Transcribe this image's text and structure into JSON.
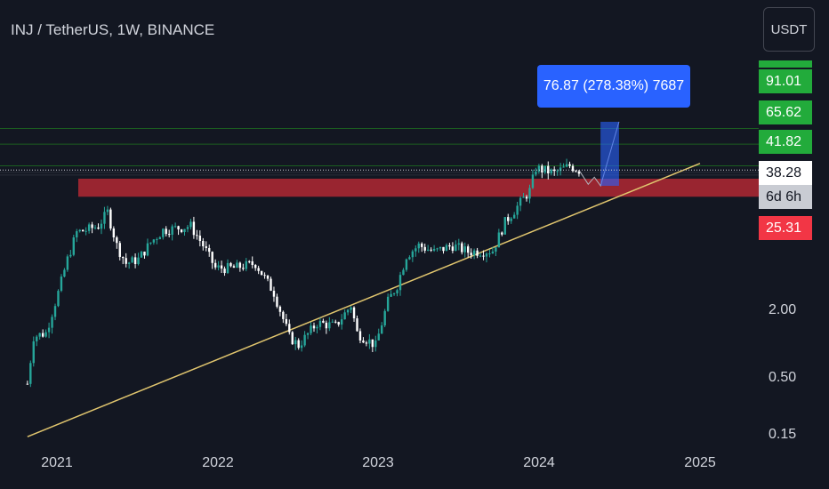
{
  "header": {
    "title": "INJ / TetherUS, 1W, BINANCE"
  },
  "toolbar": {
    "currency_label": "USDT"
  },
  "price_labels": {
    "top_bar": "",
    "tp3": "91.01",
    "tp2": "65.62",
    "tp1": "41.82",
    "current": "38.28",
    "countdown": "6d 6h",
    "support": "25.31"
  },
  "measure_callout": {
    "text": "76.87 (278.38%) 7687"
  },
  "chart_data": {
    "type": "candlestick",
    "title": "INJ / TetherUS, 1W, BINANCE",
    "y_scale": "log",
    "y_ticks": [
      "2.00",
      "0.50",
      "0.15"
    ],
    "x_ticks": [
      "2021",
      "2022",
      "2023",
      "2024",
      "2025"
    ],
    "horizontal_levels": [
      91.01,
      65.62,
      41.82,
      38.28
    ],
    "support_zone": [
      22,
      32
    ],
    "current_price": 38.28,
    "measure": {
      "from": 27.6,
      "to": 104.5,
      "change": 76.87,
      "percent": 278.38,
      "ticks": 7687
    },
    "trendline": {
      "from": [
        "2020-10-26",
        0.15
      ],
      "to": [
        "2025-01-01",
        44
      ]
    },
    "colors": {
      "up": "#26a69a",
      "down": "#ffffff",
      "support": "#b22833",
      "level": "#1b5e20",
      "trendline": "#e0c56e",
      "measure": "#2962ff"
    },
    "price_path": [
      [
        "2020-10-26",
        0.45
      ],
      [
        "2020-11-09",
        1.2
      ],
      [
        "2020-12-07",
        1.3
      ],
      [
        "2021-01-04",
        3.0
      ],
      [
        "2021-01-25",
        6.0
      ],
      [
        "2021-02-15",
        10.5
      ],
      [
        "2021-03-08",
        11.0
      ],
      [
        "2021-04-05",
        12.0
      ],
      [
        "2021-04-26",
        16.0
      ],
      [
        "2021-05-17",
        8.0
      ],
      [
        "2021-06-07",
        5.5
      ],
      [
        "2021-07-05",
        6.0
      ],
      [
        "2021-08-02",
        8.5
      ],
      [
        "2021-08-30",
        11.0
      ],
      [
        "2021-10-04",
        11.5
      ],
      [
        "2021-11-01",
        12.0
      ],
      [
        "2021-11-29",
        8.0
      ],
      [
        "2021-12-27",
        5.0
      ],
      [
        "2022-02-07",
        5.0
      ],
      [
        "2022-03-28",
        5.5
      ],
      [
        "2022-05-09",
        3.0
      ],
      [
        "2022-06-13",
        1.2
      ],
      [
        "2022-07-04",
        1.0
      ],
      [
        "2022-08-15",
        1.6
      ],
      [
        "2022-09-26",
        1.5
      ],
      [
        "2022-10-31",
        2.3
      ],
      [
        "2022-11-14",
        1.3
      ],
      [
        "2022-12-26",
        1.0
      ],
      [
        "2023-01-23",
        2.5
      ],
      [
        "2023-02-13",
        3.5
      ],
      [
        "2023-03-06",
        6.5
      ],
      [
        "2023-04-03",
        8.0
      ],
      [
        "2023-05-08",
        7.0
      ],
      [
        "2023-06-19",
        8.0
      ],
      [
        "2023-07-24",
        7.0
      ],
      [
        "2023-09-18",
        7.2
      ],
      [
        "2023-10-16",
        13.0
      ],
      [
        "2023-11-13",
        18.0
      ],
      [
        "2023-12-11",
        25.0
      ],
      [
        "2023-12-25",
        40.0
      ],
      [
        "2024-02-05",
        36.0
      ],
      [
        "2024-03-11",
        42.0
      ],
      [
        "2024-04-01",
        38.3
      ]
    ],
    "projection_path": [
      [
        "2024-04-01",
        38.3
      ],
      [
        "2024-04-22",
        28.5
      ],
      [
        "2024-05-06",
        33.0
      ],
      [
        "2024-05-20",
        27.6
      ],
      [
        "2024-07-01",
        104.5
      ]
    ]
  }
}
